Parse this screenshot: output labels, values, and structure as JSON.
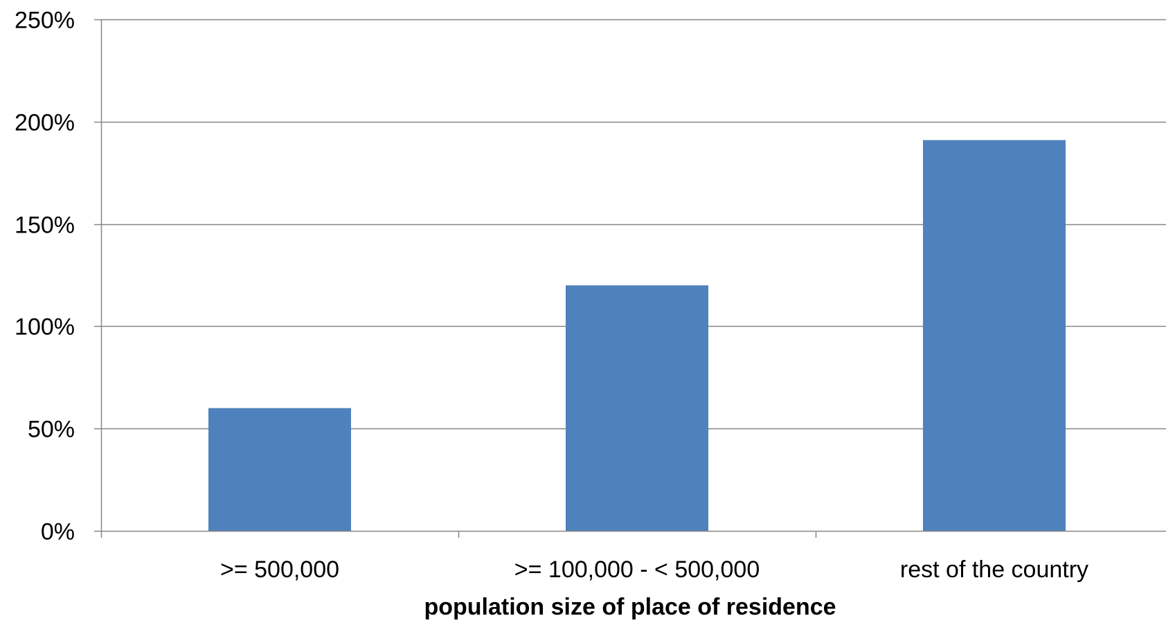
{
  "chart_data": {
    "type": "bar",
    "categories": [
      ">= 500,000",
      ">= 100,000 - < 500,000",
      "rest of the country"
    ],
    "values": [
      60,
      120,
      191
    ],
    "value_unit": "%",
    "title": "",
    "xlabel": "population size of place of residence",
    "ylabel": "",
    "ylim": [
      0,
      250
    ],
    "yticks": [
      0,
      50,
      100,
      150,
      200,
      250
    ],
    "ytick_labels": [
      "0%",
      "50%",
      "100%",
      "150%",
      "200%",
      "250%"
    ],
    "grid": true,
    "legend": "none",
    "bar_color": "#4f81bd",
    "grid_color": "#868686"
  }
}
